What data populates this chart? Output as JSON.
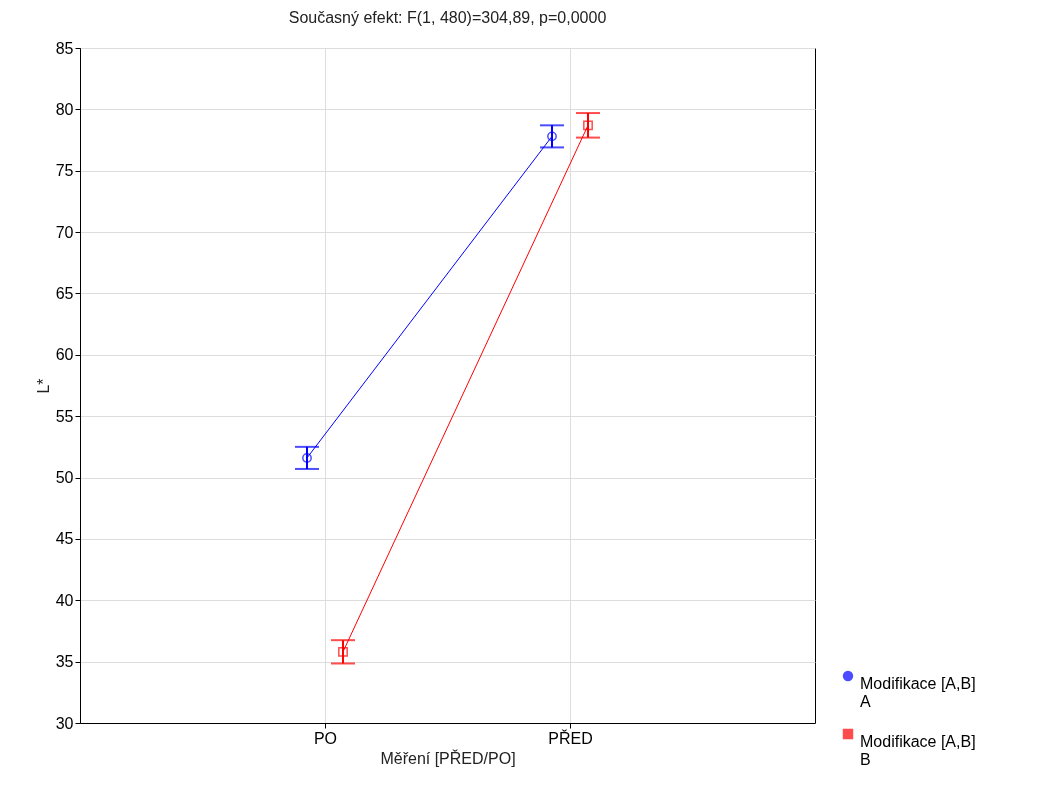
{
  "chart_data": {
    "type": "line",
    "title": "Současný efekt: F(1, 480)=304,89, p=0,0000",
    "xlabel": "Měření [PŘED/PO]",
    "ylabel": "L*",
    "categories": [
      "PO",
      "PŘED"
    ],
    "series": [
      {
        "name": "Modifikace [A,B] A",
        "color": "#0000ff",
        "marker": "circle",
        "values": [
          51.6,
          77.8
        ],
        "errors": [
          0.9,
          0.9
        ]
      },
      {
        "name": "Modifikace [A,B] B",
        "color": "#ff0000",
        "marker": "square",
        "values": [
          35.8,
          78.7
        ],
        "errors": [
          0.95,
          1.0
        ]
      }
    ],
    "ylim": [
      30,
      85
    ],
    "yticks": [
      30,
      35,
      40,
      45,
      50,
      55,
      60,
      65,
      70,
      75,
      80,
      85
    ],
    "grid": true,
    "legend": "bottom right",
    "line_style": "solid"
  }
}
